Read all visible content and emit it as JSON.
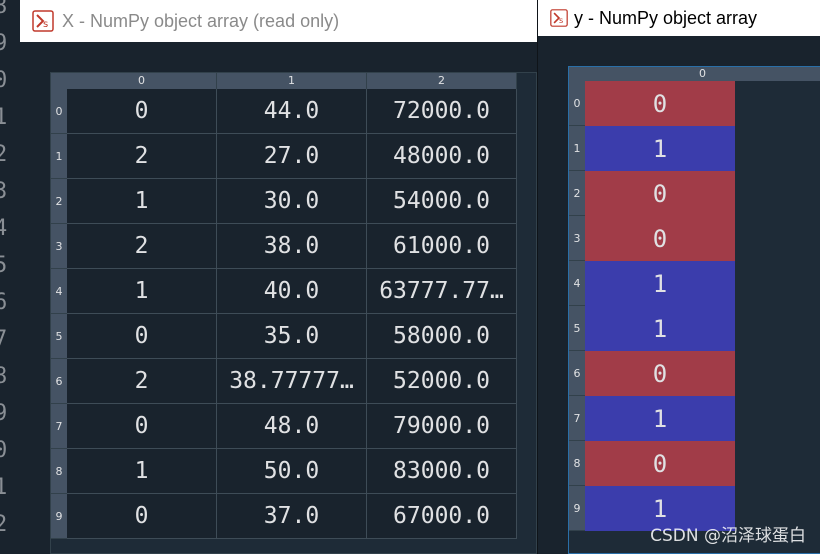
{
  "gutter_numbers": [
    "8",
    "9",
    "0",
    "1",
    "2",
    "3",
    "4",
    "5",
    "6",
    "7",
    "8",
    "9",
    "0",
    "1",
    "2"
  ],
  "window_x": {
    "title": "X - NumPy object array (read only)",
    "columns": [
      "0",
      "1",
      "2"
    ],
    "row_headers": [
      "0",
      "1",
      "2",
      "3",
      "4",
      "5",
      "6",
      "7",
      "8",
      "9"
    ],
    "rows": [
      [
        "0",
        "44.0",
        "72000.0"
      ],
      [
        "2",
        "27.0",
        "48000.0"
      ],
      [
        "1",
        "30.0",
        "54000.0"
      ],
      [
        "2",
        "38.0",
        "61000.0"
      ],
      [
        "1",
        "40.0",
        "63777.77…"
      ],
      [
        "0",
        "35.0",
        "58000.0"
      ],
      [
        "2",
        "38.77777…",
        "52000.0"
      ],
      [
        "0",
        "48.0",
        "79000.0"
      ],
      [
        "1",
        "50.0",
        "83000.0"
      ],
      [
        "0",
        "37.0",
        "67000.0"
      ]
    ]
  },
  "window_y": {
    "title": "y - NumPy object array",
    "columns": [
      "0"
    ],
    "row_headers": [
      "0",
      "1",
      "2",
      "3",
      "4",
      "5",
      "6",
      "7",
      "8",
      "9"
    ],
    "values": [
      "0",
      "1",
      "0",
      "0",
      "1",
      "1",
      "0",
      "1",
      "0",
      "1"
    ]
  },
  "colors": {
    "zero_bg": "#a13c48",
    "one_bg": "#3b3dac",
    "background": "#19232d",
    "header": "#455364"
  },
  "watermark": "CSDN @沼泽球蛋白"
}
